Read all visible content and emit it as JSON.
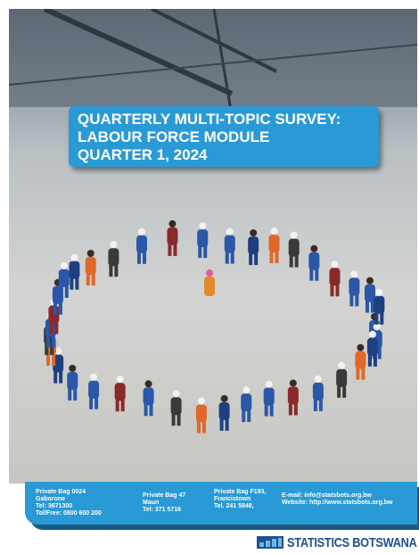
{
  "cover": {
    "title": [
      "QUARTERLY MULTI-TOPIC SURVEY:",
      "LABOUR FORCE MODULE",
      "QUARTER 1, 2024"
    ],
    "contacts": [
      [
        "Private Bag 0024",
        "Gaborone",
        "Tel: 3671300",
        "TollFree: 0800 600 200"
      ],
      [
        "Private Bag 47",
        "Maun",
        "Tel: 371 5716"
      ],
      [
        "Private Bag F193,",
        "Francistown",
        "Tel. 241 5848,"
      ]
    ],
    "online": [
      {
        "label": "E-mail:",
        "value": "info@statsbots.org.bw"
      },
      {
        "label": "Website:",
        "value": "http://www.statsbots.org.bw"
      }
    ],
    "logo": "STATISTICS BOTSWANA"
  }
}
